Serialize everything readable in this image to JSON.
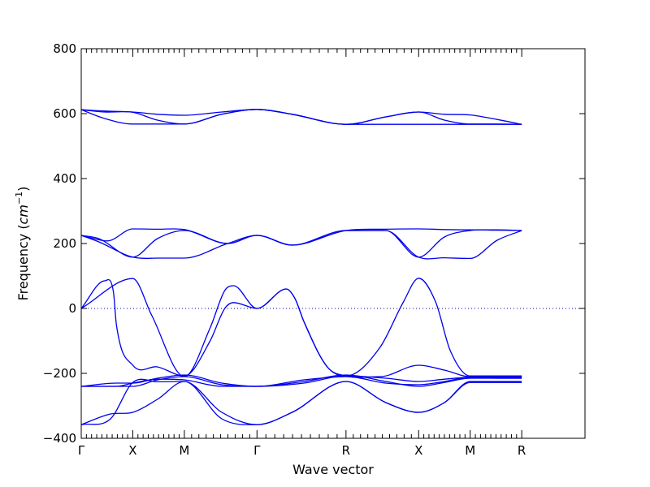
{
  "chart_data": {
    "type": "line",
    "title": "",
    "xlabel": "Wave vector",
    "ylabel_main": "Frequency (",
    "ylabel_unit": "cm",
    "ylabel_exp": "−1",
    "ylabel_close": ")",
    "ylim": [
      -400,
      800
    ],
    "yticks": [
      -400,
      -200,
      0,
      200,
      400,
      600,
      800
    ],
    "ytick_labels": [
      "−400",
      "−200",
      "0",
      "200",
      "400",
      "600",
      "800"
    ],
    "xlim": [
      0,
      8.6
    ],
    "xticks": [
      {
        "pos": 0,
        "label": "Γ"
      },
      {
        "pos": 0.88,
        "label": "X"
      },
      {
        "pos": 1.76,
        "label": "M"
      },
      {
        "pos": 3.0,
        "label": "Γ"
      },
      {
        "pos": 4.52,
        "label": "R"
      },
      {
        "pos": 5.76,
        "label": "X"
      },
      {
        "pos": 6.64,
        "label": "M"
      },
      {
        "pos": 7.52,
        "label": "R"
      }
    ],
    "zero_line": true,
    "colors": {
      "band": "#0000ee",
      "zero_line": "#0000aa",
      "axes": "#000000"
    },
    "series": [
      {
        "points": [
          [
            0,
            612
          ],
          [
            0.4,
            608
          ],
          [
            0.88,
            605
          ],
          [
            1.3,
            598
          ],
          [
            1.76,
            595
          ],
          [
            2.4,
            605
          ],
          [
            3.0,
            613
          ],
          [
            3.6,
            598
          ],
          [
            4.52,
            567
          ],
          [
            5.2,
            590
          ],
          [
            5.76,
            605
          ],
          [
            6.2,
            598
          ],
          [
            6.64,
            596
          ],
          [
            7.1,
            582
          ],
          [
            7.52,
            567
          ]
        ]
      },
      {
        "points": [
          [
            0,
            612
          ],
          [
            0.4,
            605
          ],
          [
            0.88,
            604
          ],
          [
            1.3,
            580
          ],
          [
            1.76,
            568
          ],
          [
            2.4,
            598
          ],
          [
            3.0,
            613
          ],
          [
            3.6,
            598
          ],
          [
            4.52,
            567
          ],
          [
            5.2,
            590
          ],
          [
            5.76,
            605
          ],
          [
            6.2,
            580
          ],
          [
            6.64,
            568
          ],
          [
            7.1,
            568
          ],
          [
            7.52,
            567
          ]
        ]
      },
      {
        "points": [
          [
            0,
            612
          ],
          [
            0.4,
            585
          ],
          [
            0.88,
            568
          ],
          [
            1.3,
            568
          ],
          [
            1.76,
            568
          ],
          [
            2.4,
            598
          ],
          [
            3.0,
            613
          ],
          [
            3.6,
            598
          ],
          [
            4.52,
            567
          ],
          [
            5.2,
            567
          ],
          [
            5.76,
            567
          ],
          [
            6.2,
            567
          ],
          [
            6.64,
            567
          ],
          [
            7.1,
            567
          ],
          [
            7.52,
            567
          ]
        ]
      },
      {
        "points": [
          [
            0,
            225
          ],
          [
            0.45,
            208
          ],
          [
            0.88,
            245
          ],
          [
            1.3,
            244
          ],
          [
            1.76,
            243
          ],
          [
            2.5,
            200
          ],
          [
            3.0,
            225
          ],
          [
            3.6,
            195
          ],
          [
            4.52,
            240
          ],
          [
            5.2,
            244
          ],
          [
            5.76,
            245
          ],
          [
            6.2,
            243
          ],
          [
            6.64,
            242
          ],
          [
            7.1,
            242
          ],
          [
            7.52,
            240
          ]
        ]
      },
      {
        "points": [
          [
            0,
            225
          ],
          [
            0.3,
            215
          ],
          [
            0.88,
            158
          ],
          [
            1.3,
            215
          ],
          [
            1.76,
            240
          ],
          [
            2.5,
            200
          ],
          [
            3.0,
            225
          ],
          [
            3.6,
            195
          ],
          [
            4.52,
            240
          ],
          [
            5.2,
            240
          ],
          [
            5.76,
            158
          ],
          [
            6.2,
            220
          ],
          [
            6.64,
            240
          ],
          [
            7.1,
            241
          ],
          [
            7.52,
            240
          ]
        ]
      },
      {
        "points": [
          [
            0,
            225
          ],
          [
            0.3,
            205
          ],
          [
            0.88,
            158
          ],
          [
            1.3,
            155
          ],
          [
            1.76,
            155
          ],
          [
            2.5,
            200
          ],
          [
            3.0,
            225
          ],
          [
            3.6,
            195
          ],
          [
            4.52,
            240
          ],
          [
            5.2,
            240
          ],
          [
            5.76,
            158
          ],
          [
            6.2,
            156
          ],
          [
            6.64,
            154
          ],
          [
            7.1,
            210
          ],
          [
            7.52,
            240
          ]
        ]
      },
      {
        "points": [
          [
            0,
            0
          ],
          [
            0.4,
            85
          ],
          [
            0.55,
            50
          ],
          [
            0.6,
            -50
          ],
          [
            0.88,
            -175
          ],
          [
            1.3,
            -180
          ],
          [
            1.76,
            -208
          ],
          [
            2.2,
            -100
          ],
          [
            2.45,
            0
          ],
          [
            2.6,
            18
          ],
          [
            3.0,
            0
          ],
          [
            3.5,
            60
          ],
          [
            3.65,
            30
          ],
          [
            3.8,
            -40
          ],
          [
            4.2,
            -180
          ],
          [
            4.52,
            -208
          ],
          [
            5.1,
            -120
          ],
          [
            5.5,
            20
          ],
          [
            5.76,
            93
          ],
          [
            6.05,
            20
          ],
          [
            6.3,
            -130
          ],
          [
            6.64,
            -208
          ],
          [
            7.52,
            -208
          ]
        ]
      },
      {
        "points": [
          [
            0,
            0
          ],
          [
            0.88,
            92
          ],
          [
            1.2,
            -20
          ],
          [
            1.76,
            -210
          ],
          [
            2.2,
            -60
          ],
          [
            2.45,
            55
          ],
          [
            2.6,
            70
          ],
          [
            3.0,
            0
          ],
          [
            3.5,
            60
          ],
          [
            3.65,
            30
          ],
          [
            3.8,
            -40
          ],
          [
            4.2,
            -180
          ],
          [
            4.52,
            -208
          ],
          [
            5.1,
            -210
          ],
          [
            5.76,
            -175
          ],
          [
            6.2,
            -190
          ],
          [
            6.64,
            -210
          ],
          [
            7.52,
            -210
          ]
        ]
      },
      {
        "points": [
          [
            0,
            -240
          ],
          [
            0.6,
            -230
          ],
          [
            0.88,
            -230
          ],
          [
            1.3,
            -215
          ],
          [
            1.76,
            -205
          ],
          [
            2.4,
            -230
          ],
          [
            3.0,
            -240
          ],
          [
            3.8,
            -230
          ],
          [
            4.52,
            -208
          ],
          [
            5.2,
            -215
          ],
          [
            5.76,
            -225
          ],
          [
            6.2,
            -218
          ],
          [
            6.64,
            -212
          ],
          [
            7.1,
            -215
          ],
          [
            7.52,
            -215
          ]
        ]
      },
      {
        "points": [
          [
            0,
            -240
          ],
          [
            0.6,
            -240
          ],
          [
            0.88,
            -240
          ],
          [
            1.3,
            -220
          ],
          [
            1.76,
            -210
          ],
          [
            2.4,
            -235
          ],
          [
            3.0,
            -240
          ],
          [
            3.8,
            -225
          ],
          [
            4.52,
            -205
          ],
          [
            5.2,
            -225
          ],
          [
            5.76,
            -240
          ],
          [
            6.2,
            -228
          ],
          [
            6.64,
            -215
          ],
          [
            7.1,
            -215
          ],
          [
            7.52,
            -215
          ]
        ]
      },
      {
        "points": [
          [
            0,
            -240
          ],
          [
            0.6,
            -240
          ],
          [
            0.88,
            -230
          ],
          [
            1.3,
            -218
          ],
          [
            1.76,
            -220
          ],
          [
            2.4,
            -240
          ],
          [
            3.0,
            -240
          ],
          [
            3.8,
            -220
          ],
          [
            4.52,
            -210
          ],
          [
            5.2,
            -230
          ],
          [
            5.76,
            -235
          ],
          [
            6.2,
            -225
          ],
          [
            6.64,
            -212
          ],
          [
            7.1,
            -212
          ],
          [
            7.52,
            -212
          ]
        ]
      },
      {
        "points": [
          [
            0,
            -358
          ],
          [
            0.5,
            -325
          ],
          [
            0.88,
            -320
          ],
          [
            1.3,
            -280
          ],
          [
            1.76,
            -225
          ],
          [
            2.4,
            -320
          ],
          [
            3.0,
            -358
          ],
          [
            3.6,
            -320
          ],
          [
            4.52,
            -225
          ],
          [
            5.2,
            -290
          ],
          [
            5.76,
            -320
          ],
          [
            6.2,
            -290
          ],
          [
            6.64,
            -225
          ],
          [
            7.1,
            -225
          ],
          [
            7.52,
            -225
          ]
        ]
      },
      {
        "points": [
          [
            0,
            -358
          ],
          [
            0.5,
            -340
          ],
          [
            0.88,
            -228
          ],
          [
            1.3,
            -226
          ],
          [
            1.76,
            -225
          ],
          [
            2.4,
            -340
          ],
          [
            3.0,
            -358
          ],
          [
            3.6,
            -320
          ],
          [
            4.52,
            -225
          ],
          [
            5.2,
            -290
          ],
          [
            5.76,
            -320
          ],
          [
            6.2,
            -290
          ],
          [
            6.64,
            -228
          ],
          [
            7.1,
            -228
          ],
          [
            7.52,
            -228
          ]
        ]
      }
    ]
  }
}
